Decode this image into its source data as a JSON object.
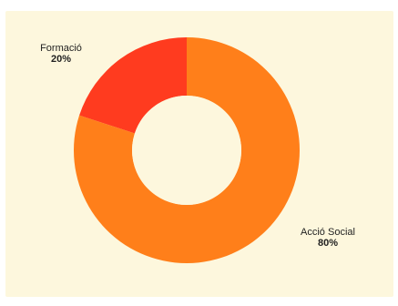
{
  "chart_data": {
    "type": "pie",
    "subtype": "donut",
    "title": "",
    "slices": [
      {
        "label": "Formació",
        "value": 20,
        "value_label": "20%",
        "color": "#ff3b1f"
      },
      {
        "label": "Acció Social",
        "value": 80,
        "value_label": "80%",
        "color": "#ff7f1a"
      }
    ],
    "background": "#fdf7dd",
    "legend": "none"
  }
}
